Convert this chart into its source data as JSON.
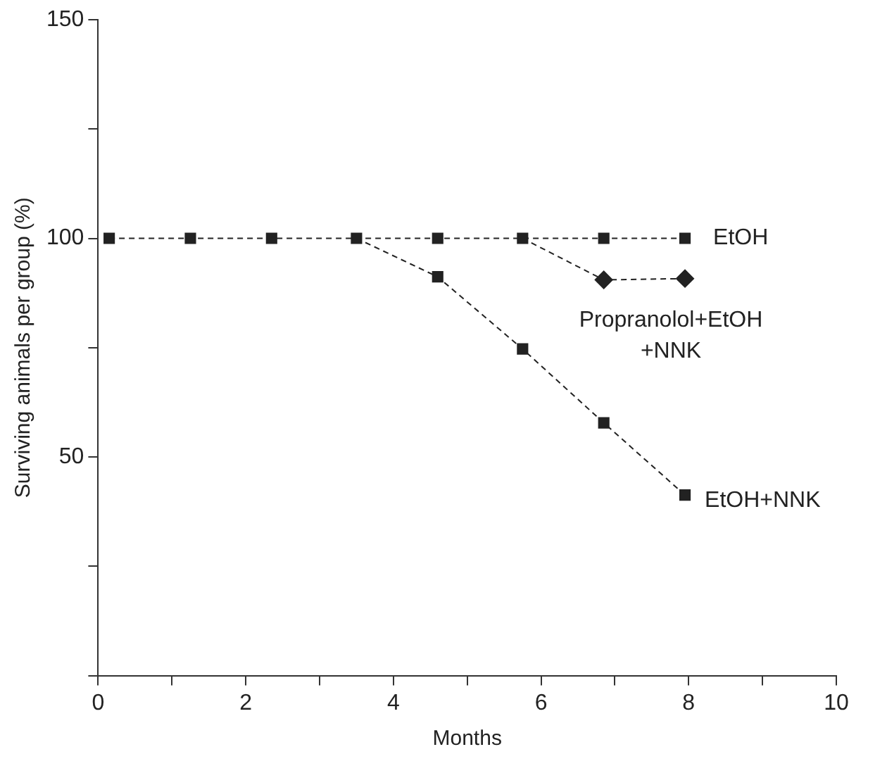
{
  "chart_data": {
    "type": "line",
    "xlabel": "Months",
    "ylabel": "Surviving animals per group (%)",
    "xlim": [
      0,
      10
    ],
    "xticks": [
      0,
      {
        "value": 1,
        "label": null
      },
      2,
      {
        "value": 3,
        "label": null
      },
      4,
      {
        "value": 5,
        "label": null
      },
      6,
      {
        "value": 7,
        "label": null
      },
      8,
      {
        "value": 9,
        "label": null
      },
      10
    ],
    "ylim": [
      0,
      150
    ],
    "yticks": [
      {
        "value": 0,
        "label": null
      },
      {
        "value": 25,
        "label": null
      },
      50,
      {
        "value": 75,
        "label": null
      },
      100,
      {
        "value": 125,
        "label": null
      },
      150
    ],
    "grid": false,
    "legend": false,
    "line_style": "dashed",
    "series": [
      {
        "name": "EtOH",
        "color": "#222222",
        "marker": "square",
        "x": [
          0.15,
          1.25,
          2.35,
          3.5,
          4.6,
          5.75,
          6.85,
          7.95
        ],
        "values": [
          100,
          100,
          100,
          100,
          100,
          100,
          100,
          100
        ]
      },
      {
        "name": "Propranolol+EtOH +NNK",
        "color": "#222222",
        "marker": "diamond",
        "x": [
          5.75,
          6.85,
          7.95
        ],
        "values": [
          100,
          90.5,
          90.8
        ]
      },
      {
        "name": "EtOH+NNK",
        "color": "#222222",
        "marker": "square",
        "x": [
          3.5,
          4.6,
          5.75,
          6.85,
          7.95
        ],
        "values": [
          100,
          91.2,
          74.7,
          57.8,
          41.3
        ]
      }
    ]
  }
}
